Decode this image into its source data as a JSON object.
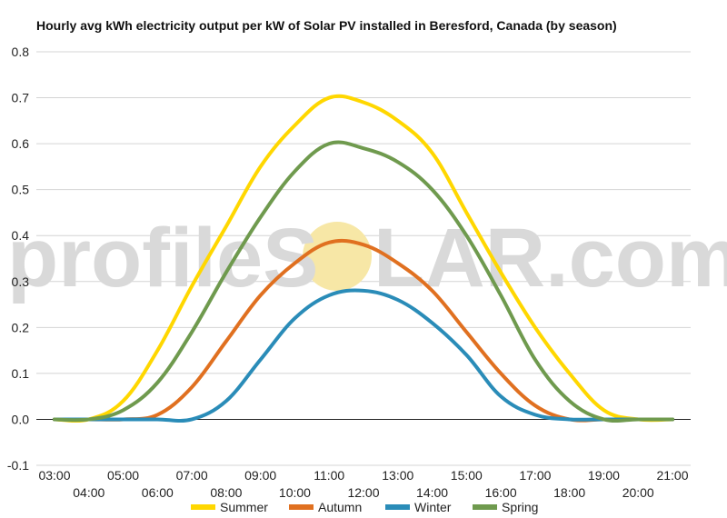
{
  "title": "Hourly avg kWh electricity output per kW of Solar PV installed in Beresford, Canada (by season)",
  "watermark": {
    "text_pre": "profileS",
    "text_post": "LAR.com",
    "sun_color": "#f7e7a6"
  },
  "chart_data": {
    "type": "line",
    "title": "Hourly avg kWh electricity output per kW of Solar PV installed in Beresford, Canada (by season)",
    "xlabel": "",
    "ylabel": "",
    "ylim": [
      -0.1,
      0.8
    ],
    "yticks": [
      "-0.1",
      "0.0",
      "0.1",
      "0.2",
      "0.3",
      "0.4",
      "0.5",
      "0.6",
      "0.7",
      "0.8"
    ],
    "yticks_values": [
      -0.1,
      0.0,
      0.1,
      0.2,
      0.3,
      0.4,
      0.5,
      0.6,
      0.7,
      0.8
    ],
    "x": [
      "03:00",
      "04:00",
      "05:00",
      "06:00",
      "07:00",
      "08:00",
      "09:00",
      "10:00",
      "11:00",
      "12:00",
      "13:00",
      "14:00",
      "15:00",
      "16:00",
      "17:00",
      "18:00",
      "19:00",
      "20:00",
      "21:00"
    ],
    "grid": true,
    "legend_position": "bottom",
    "series": [
      {
        "name": "Summer",
        "color": "#ffd700",
        "values": [
          0.0,
          0.0,
          0.04,
          0.15,
          0.29,
          0.42,
          0.55,
          0.64,
          0.7,
          0.69,
          0.65,
          0.58,
          0.45,
          0.32,
          0.2,
          0.1,
          0.02,
          0.0,
          0.0
        ]
      },
      {
        "name": "Autumn",
        "color": "#e07020",
        "values": [
          0.0,
          0.0,
          0.0,
          0.01,
          0.07,
          0.17,
          0.27,
          0.34,
          0.385,
          0.38,
          0.34,
          0.28,
          0.19,
          0.1,
          0.03,
          0.0,
          0.0,
          0.0,
          0.0
        ]
      },
      {
        "name": "Winter",
        "color": "#2a8cb8",
        "values": [
          0.0,
          0.0,
          0.0,
          0.0,
          0.0,
          0.04,
          0.13,
          0.22,
          0.27,
          0.28,
          0.26,
          0.21,
          0.14,
          0.05,
          0.01,
          0.0,
          0.0,
          0.0,
          0.0
        ]
      },
      {
        "name": "Spring",
        "color": "#6f9a4e",
        "values": [
          0.0,
          0.0,
          0.02,
          0.08,
          0.19,
          0.32,
          0.44,
          0.54,
          0.6,
          0.59,
          0.56,
          0.5,
          0.4,
          0.27,
          0.13,
          0.04,
          0.0,
          0.0,
          0.0
        ]
      }
    ]
  }
}
